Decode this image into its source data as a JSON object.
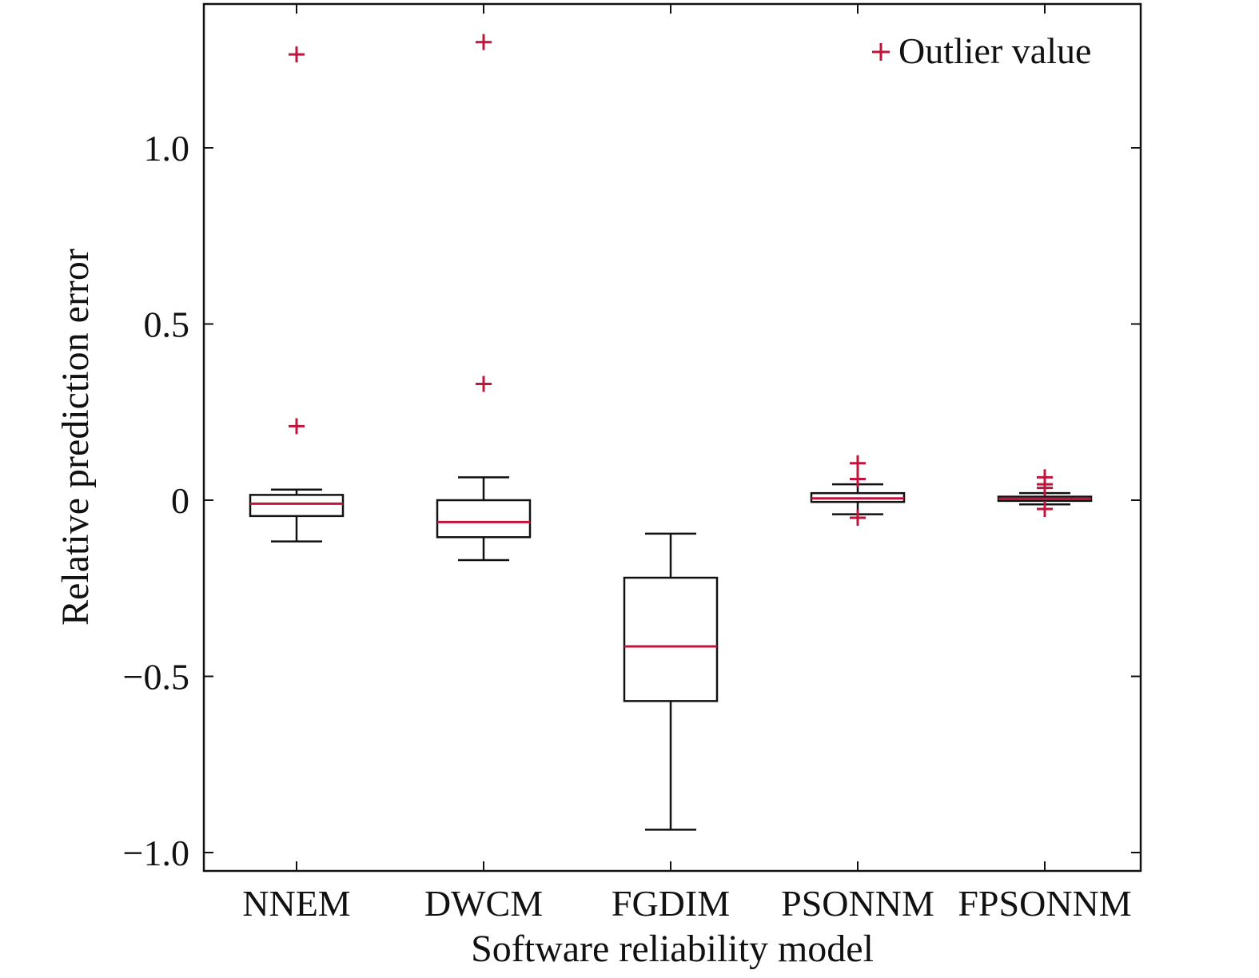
{
  "chart_data": {
    "type": "box",
    "xlabel": "Software reliability model",
    "ylabel": "Relative prediction error",
    "ylim": [
      -1.05,
      1.42
    ],
    "yticks": [
      -1.0,
      -0.5,
      0,
      0.5,
      1.0
    ],
    "ytick_labels": [
      "−1.0",
      "−0.5",
      "0",
      "0.5",
      "1.0"
    ],
    "legend": {
      "label": "Outlier value",
      "position": "top-right"
    },
    "colors": {
      "median": "#c0143c",
      "outlier": "#c0143c",
      "box": "#111111"
    },
    "categories": [
      "NNEM",
      "DWCM",
      "FGDIM",
      "PSONNM",
      "FPSONNM"
    ],
    "boxes": [
      {
        "name": "NNEM",
        "whisker_low": -0.117,
        "q1": -0.045,
        "median": -0.01,
        "q3": 0.015,
        "whisker_high": 0.03,
        "outliers": [
          1.265,
          0.21
        ]
      },
      {
        "name": "DWCM",
        "whisker_low": -0.17,
        "q1": -0.105,
        "median": -0.062,
        "q3": 0.0,
        "whisker_high": 0.065,
        "outliers": [
          1.3,
          0.33
        ]
      },
      {
        "name": "FGDIM",
        "whisker_low": -0.935,
        "q1": -0.57,
        "median": -0.415,
        "q3": -0.22,
        "whisker_high": -0.095,
        "outliers": []
      },
      {
        "name": "PSONNM",
        "whisker_low": -0.04,
        "q1": -0.005,
        "median": 0.005,
        "q3": 0.02,
        "whisker_high": 0.045,
        "outliers": [
          0.105,
          0.06,
          -0.05
        ]
      },
      {
        "name": "FPSONNM",
        "whisker_low": -0.012,
        "q1": -0.002,
        "median": 0.004,
        "q3": 0.01,
        "whisker_high": 0.02,
        "outliers": [
          0.065,
          0.045,
          0.035,
          -0.025
        ]
      }
    ]
  }
}
